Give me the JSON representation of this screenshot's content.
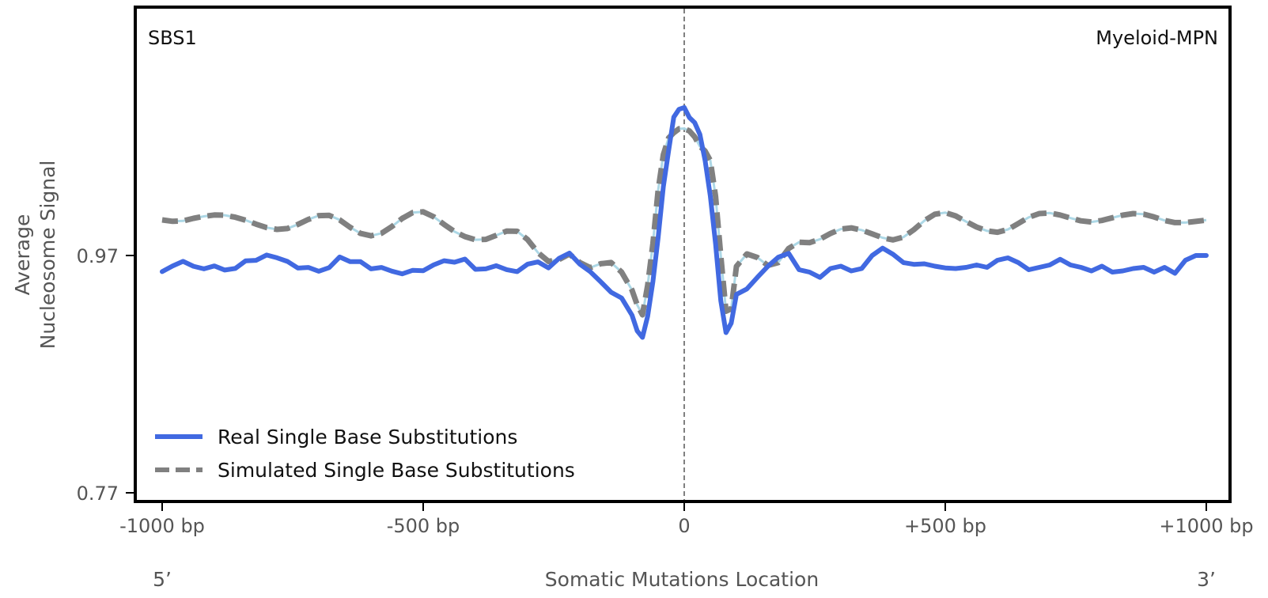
{
  "chart_data": {
    "type": "line",
    "ylabel_lines": [
      "Average",
      "Nucleosome Signal"
    ],
    "xlabel": "Somatic Mutations Location",
    "left_annotation": "SBS1",
    "right_annotation": "Myeloid-MPN",
    "end_labels": {
      "left": "5’",
      "right": "3’"
    },
    "xlim": [
      -1000,
      1000
    ],
    "x_ticks": [
      {
        "value": -1000,
        "label": "-1000 bp"
      },
      {
        "value": -500,
        "label": "-500 bp"
      },
      {
        "value": 0,
        "label": "0"
      },
      {
        "value": 500,
        "label": "+500 bp"
      },
      {
        "value": 1000,
        "label": "+1000 bp"
      }
    ],
    "y_ticks": [
      {
        "value": 0.77,
        "label": "0.77"
      },
      {
        "value": 0.97,
        "label": "0.97"
      }
    ],
    "legend_position": "bottom-left",
    "vline_at": 0,
    "colors": {
      "real": "#4169e1",
      "simulated": "#808080",
      "simulated_under": "#add8e6",
      "axis_frame": "#000000",
      "vline": "#808080"
    },
    "series": [
      {
        "name": "Real Single Base Substitutions",
        "style": "solid",
        "color": "#4169e1",
        "x": [
          -1000,
          -980,
          -960,
          -940,
          -920,
          -900,
          -880,
          -860,
          -840,
          -820,
          -800,
          -780,
          -760,
          -740,
          -720,
          -700,
          -680,
          -660,
          -640,
          -620,
          -600,
          -580,
          -560,
          -540,
          -520,
          -500,
          -480,
          -460,
          -440,
          -420,
          -400,
          -380,
          -360,
          -340,
          -320,
          -300,
          -280,
          -260,
          -240,
          -220,
          -200,
          -180,
          -160,
          -140,
          -120,
          -100,
          -90,
          -80,
          -70,
          -60,
          -50,
          -40,
          -30,
          -20,
          -10,
          0,
          10,
          20,
          30,
          40,
          50,
          60,
          70,
          80,
          90,
          100,
          120,
          140,
          160,
          180,
          200,
          220,
          240,
          260,
          280,
          300,
          320,
          340,
          360,
          380,
          400,
          420,
          440,
          460,
          480,
          500,
          520,
          540,
          560,
          580,
          600,
          620,
          640,
          660,
          680,
          700,
          720,
          740,
          760,
          780,
          800,
          820,
          840,
          860,
          880,
          900,
          920,
          940,
          960,
          980,
          1000
        ],
        "values": [
          0.9564,
          0.9612,
          0.9651,
          0.9609,
          0.9587,
          0.9612,
          0.9577,
          0.9591,
          0.9655,
          0.9659,
          0.9704,
          0.9681,
          0.965,
          0.9594,
          0.9599,
          0.9567,
          0.9598,
          0.9687,
          0.9648,
          0.9648,
          0.9587,
          0.9599,
          0.9568,
          0.9545,
          0.9575,
          0.9572,
          0.9621,
          0.9656,
          0.9643,
          0.967,
          0.9583,
          0.9587,
          0.9614,
          0.9581,
          0.9564,
          0.9627,
          0.9646,
          0.9595,
          0.9675,
          0.972,
          0.9627,
          0.9563,
          0.9479,
          0.939,
          0.9342,
          0.9197,
          0.9064,
          0.901,
          0.9189,
          0.948,
          0.985,
          1.028,
          1.058,
          1.0866,
          1.0932,
          1.0947,
          1.0862,
          1.082,
          1.072,
          1.05,
          1.02,
          0.98,
          0.932,
          0.905,
          0.913,
          0.9372,
          0.9418,
          0.9515,
          0.9608,
          0.9685,
          0.9718,
          0.958,
          0.956,
          0.9515,
          0.959,
          0.961,
          0.957,
          0.959,
          0.97,
          0.9762,
          0.971,
          0.964,
          0.9625,
          0.963,
          0.961,
          0.9595,
          0.959,
          0.96,
          0.962,
          0.96,
          0.966,
          0.968,
          0.964,
          0.958,
          0.96,
          0.962,
          0.9668,
          0.962,
          0.96,
          0.957,
          0.961,
          0.956,
          0.957,
          0.959,
          0.96,
          0.956,
          0.96,
          0.955,
          0.966,
          0.97,
          0.97
        ]
      },
      {
        "name": "Simulated Single Base Substitutions",
        "style": "dashed",
        "color": "#808080",
        "x": [
          -1000,
          -980,
          -960,
          -940,
          -920,
          -900,
          -880,
          -860,
          -840,
          -820,
          -800,
          -780,
          -760,
          -740,
          -720,
          -700,
          -680,
          -660,
          -640,
          -620,
          -600,
          -580,
          -560,
          -540,
          -520,
          -500,
          -480,
          -460,
          -440,
          -420,
          -400,
          -380,
          -360,
          -340,
          -320,
          -300,
          -280,
          -260,
          -240,
          -220,
          -200,
          -180,
          -160,
          -140,
          -120,
          -100,
          -90,
          -80,
          -70,
          -60,
          -50,
          -40,
          -30,
          -20,
          -10,
          0,
          10,
          20,
          30,
          40,
          50,
          60,
          70,
          80,
          90,
          100,
          120,
          140,
          160,
          180,
          200,
          220,
          240,
          260,
          280,
          300,
          320,
          340,
          360,
          380,
          400,
          420,
          440,
          460,
          480,
          500,
          520,
          540,
          560,
          580,
          600,
          620,
          640,
          660,
          680,
          700,
          720,
          740,
          760,
          780,
          800,
          820,
          840,
          860,
          880,
          900,
          920,
          940,
          960,
          980,
          1000
        ],
        "values": [
          1.0,
          0.9988,
          0.9991,
          1.0013,
          1.003,
          1.0041,
          1.0039,
          1.0023,
          0.9997,
          0.9964,
          0.9935,
          0.992,
          0.9927,
          0.9962,
          1.0004,
          1.0036,
          1.0038,
          1.0,
          0.9938,
          0.9886,
          0.9866,
          0.9887,
          0.9944,
          1.0013,
          1.0062,
          1.0068,
          1.0027,
          0.9962,
          0.9901,
          0.9859,
          0.9833,
          0.9836,
          0.987,
          0.9906,
          0.9904,
          0.9834,
          0.9723,
          0.965,
          0.9665,
          0.9712,
          0.9641,
          0.9597,
          0.9631,
          0.9641,
          0.956,
          0.9408,
          0.9283,
          0.92,
          0.945,
          0.98,
          1.025,
          1.055,
          1.069,
          1.0735,
          1.0768,
          1.077,
          1.0749,
          1.07,
          1.062,
          1.058,
          1.05,
          1.02,
          0.97,
          0.923,
          0.925,
          0.9608,
          0.9713,
          0.9683,
          0.9616,
          0.964,
          0.9759,
          0.9812,
          0.9808,
          0.9837,
          0.9885,
          0.9923,
          0.9933,
          0.9914,
          0.9882,
          0.9849,
          0.9831,
          0.9855,
          0.9918,
          0.9993,
          1.0048,
          1.0061,
          1.0033,
          0.9985,
          0.994,
          0.9907,
          0.9896,
          0.9919,
          0.997,
          1.0022,
          1.0053,
          1.0058,
          1.0041,
          1.0015,
          0.9992,
          0.9983,
          0.9995,
          1.0018,
          1.004,
          1.0053,
          1.0049,
          1.0025,
          0.9995,
          0.9977,
          0.9977,
          0.9987,
          0.9998
        ]
      }
    ]
  }
}
